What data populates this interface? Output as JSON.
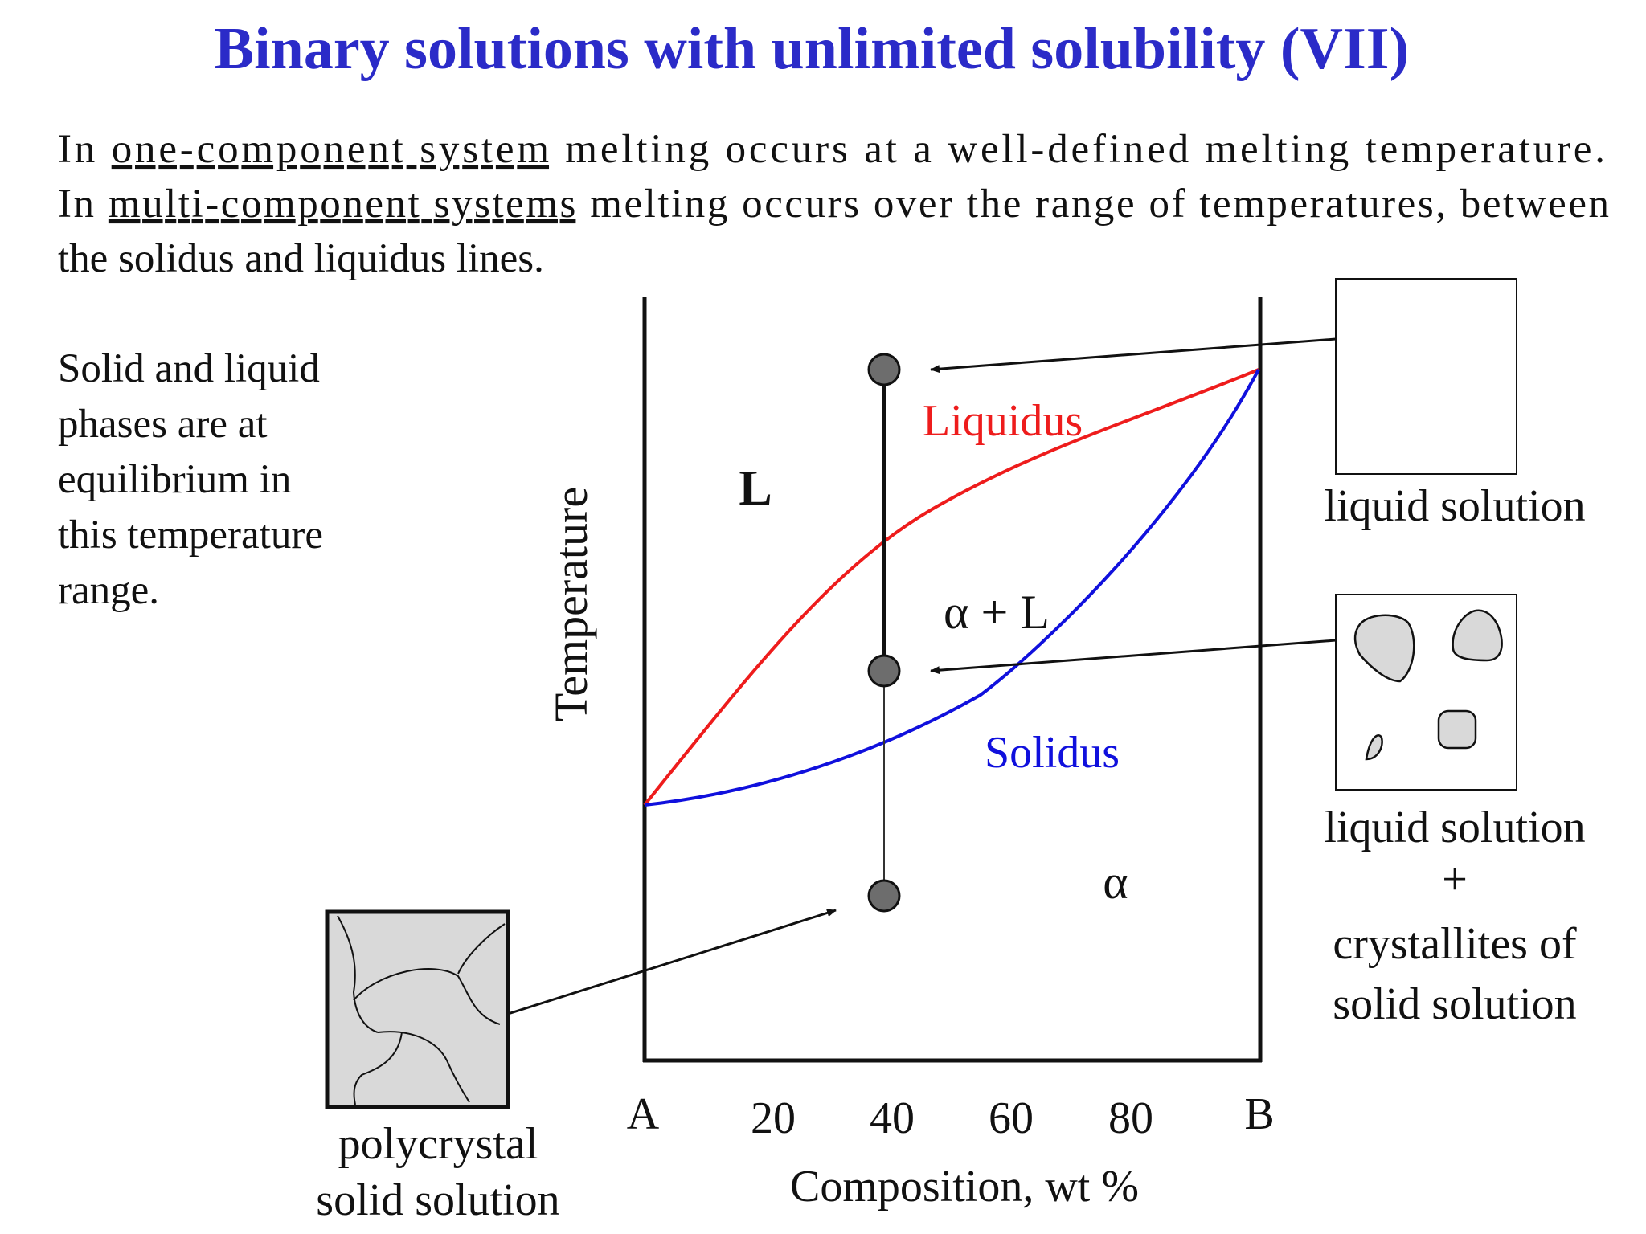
{
  "title": "Binary solutions with unlimited solubility (VII)",
  "intro": {
    "line1": {
      "pre": "In ",
      "u": "one-component system",
      "post": " melting occurs at a well-defined melting temperature."
    },
    "line2": {
      "pre": "In ",
      "u": "multi-component systems",
      "post": " melting occurs over the range of temperatures, between"
    },
    "line3": "the solidus and liquidus lines."
  },
  "side_note": [
    "Solid and liquid",
    "phases are at",
    "equilibrium in",
    "this temperature",
    "range."
  ],
  "diagram": {
    "y_axis_label": "Temperature",
    "x_axis_label": "Composition, wt %",
    "x_ticks": [
      "A",
      "20",
      "40",
      "60",
      "80",
      "B"
    ],
    "regions": {
      "liquid": "L",
      "two_phase": "α + L",
      "solid": "α"
    },
    "curves": {
      "liquidus": "Liquidus",
      "solidus": "Solidus"
    },
    "colors": {
      "liquidus": "#ee1c1c",
      "solidus": "#1010dd",
      "title": "#2b2bc8",
      "marker": "#6d6d6d",
      "crystal": "#d9d9d9"
    },
    "insets": {
      "liquid": [
        "liquid solution"
      ],
      "two_phase": [
        "liquid solution",
        "+",
        "crystallites of",
        "solid solution"
      ],
      "solid": [
        "polycrystal",
        "solid solution"
      ]
    }
  }
}
